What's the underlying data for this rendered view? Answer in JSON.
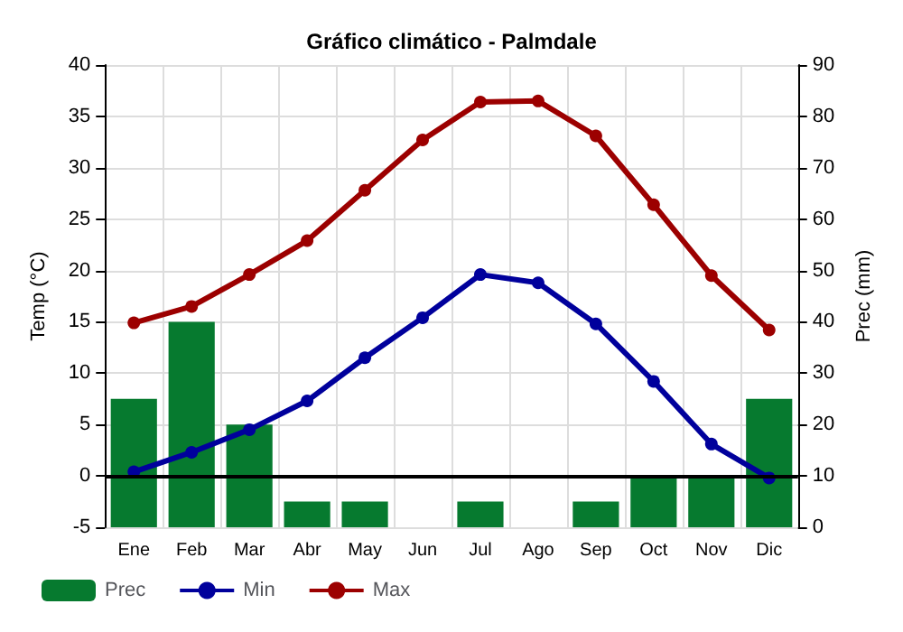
{
  "chart_data": {
    "type": "line",
    "title": "Gráfico climático - Palmdale",
    "ylabel": "Temp (°C)",
    "y2label": "Prec (mm)",
    "categories": [
      "Ene",
      "Feb",
      "Mar",
      "Abr",
      "May",
      "Jun",
      "Jul",
      "Ago",
      "Sep",
      "Oct",
      "Nov",
      "Dic"
    ],
    "series": [
      {
        "name": "Prec",
        "type": "bar",
        "axis": "y2",
        "color": "#067a2f",
        "values": [
          25,
          40,
          20,
          5,
          5,
          0,
          5,
          0,
          5,
          10,
          10,
          25
        ]
      },
      {
        "name": "Min",
        "color": "#00009c",
        "values": [
          0.4,
          2.3,
          4.5,
          7.3,
          11.5,
          15.4,
          19.6,
          18.8,
          14.8,
          9.2,
          3.1,
          -0.2
        ]
      },
      {
        "name": "Max",
        "color": "#9c0000",
        "values": [
          14.9,
          16.5,
          19.6,
          22.9,
          27.8,
          32.7,
          36.4,
          36.5,
          33.1,
          26.4,
          19.5,
          14.2
        ]
      }
    ],
    "ylim": [
      -5,
      40
    ],
    "yticks": [
      -5,
      0,
      5,
      10,
      15,
      20,
      25,
      30,
      35,
      40
    ],
    "y2lim": [
      0,
      90
    ],
    "y2ticks": [
      0,
      10,
      20,
      30,
      40,
      50,
      60,
      70,
      80,
      90
    ],
    "ref_lines": [
      {
        "axis": "y",
        "value": 0,
        "color": "#000000"
      }
    ],
    "grid": true,
    "legend": "bottom",
    "marker": "circle",
    "line_style": "solid"
  }
}
